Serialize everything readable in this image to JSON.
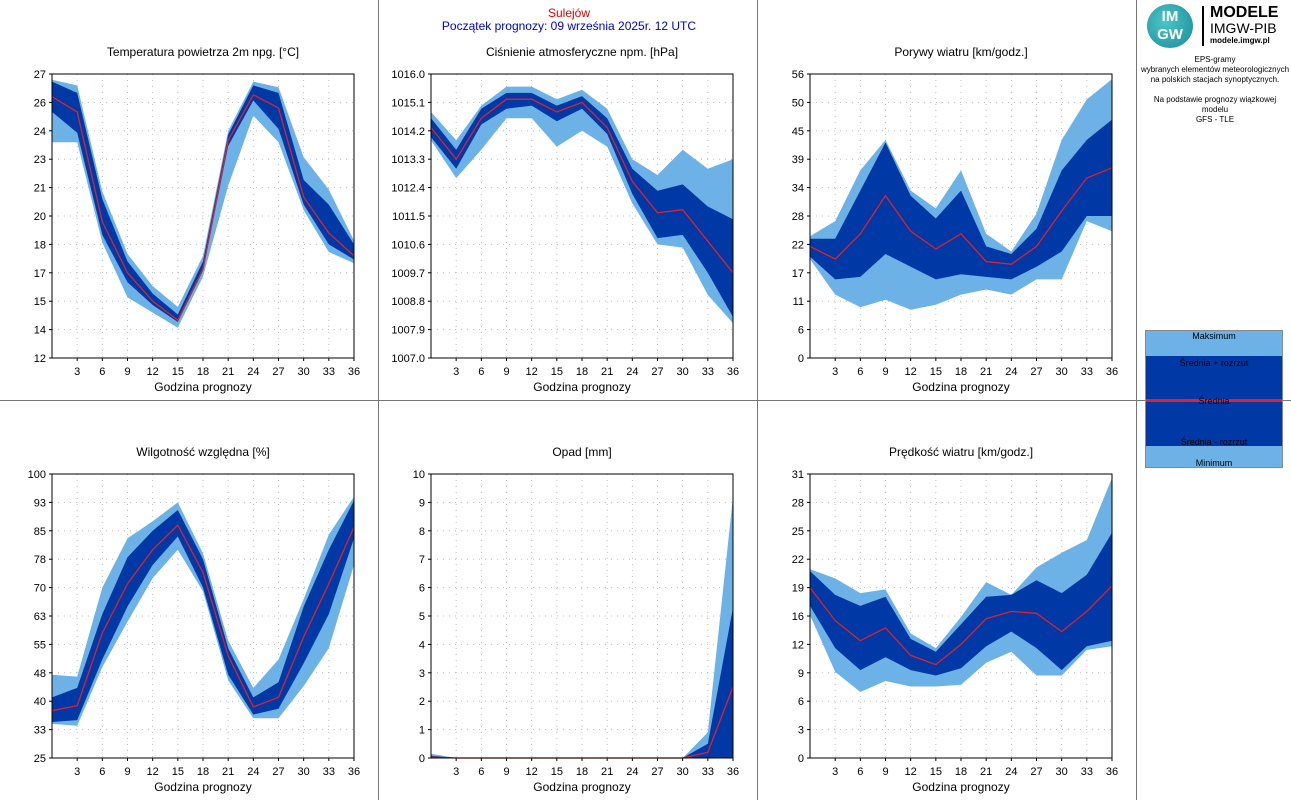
{
  "header": {
    "location": "Sulejów",
    "forecast_start": "Początek prognozy: 09 września 2025r. 12 UTC"
  },
  "logo": {
    "mark_line1": "IM",
    "mark_line2": "GW",
    "title": "MODELE",
    "org": "IMGW-PIB",
    "url": "modele.imgw.pl"
  },
  "description": {
    "lines": [
      "EPS-gramy",
      "wybranych elementów meteorologicznych",
      "na polskich stacjach  synoptycznych.",
      "",
      "Na podstawie prognozy wiązkowej modelu",
      "GFS - TLE"
    ]
  },
  "legend": {
    "max": "Maksimum",
    "plus": "Średnia + rozrzut",
    "mean": "Średnia",
    "minus": "Średnia - rozrzut",
    "min": "Minimum"
  },
  "colors": {
    "light": "#6cb2e6",
    "dark": "#0039a6",
    "mean": "#e0202a",
    "grid": "#b0b0b0"
  },
  "chart_data": [
    {
      "type": "area",
      "title": "Temperatura powietrza 2m npg. [°C]",
      "xlabel": "Godzina prognozy",
      "x": [
        0,
        3,
        6,
        9,
        12,
        15,
        18,
        21,
        24,
        27,
        30,
        33,
        36
      ],
      "xticks": [
        3,
        6,
        9,
        12,
        15,
        18,
        21,
        24,
        27,
        30,
        33,
        36
      ],
      "yticks": [
        "12",
        "14",
        "15",
        "17",
        "18",
        "20",
        "21",
        "23",
        "24",
        "26",
        "27"
      ],
      "ylim": [
        12,
        27
      ],
      "max": [
        26.7,
        26.4,
        20.8,
        17.5,
        15.8,
        14.7,
        17.4,
        24.0,
        26.6,
        26.3,
        22.6,
        20.9,
        18.2
      ],
      "plus": [
        26.6,
        26.0,
        20.4,
        17.1,
        15.4,
        14.3,
        17.1,
        23.8,
        26.4,
        26.0,
        21.4,
        20.1,
        18.0
      ],
      "mean": [
        25.8,
        25.0,
        19.2,
        16.5,
        15.0,
        14.0,
        16.7,
        23.5,
        25.9,
        25.2,
        20.5,
        18.6,
        17.4
      ],
      "minus": [
        25.0,
        23.9,
        18.5,
        16.0,
        14.8,
        13.9,
        16.6,
        23.2,
        25.6,
        24.1,
        20.1,
        18.0,
        17.2
      ],
      "min": [
        23.4,
        23.4,
        18.1,
        15.2,
        14.4,
        13.6,
        16.3,
        21.1,
        24.8,
        23.4,
        19.8,
        17.6,
        17.0
      ]
    },
    {
      "type": "area",
      "title": "Ciśnienie atmosferyczne npm. [hPa]",
      "xlabel": "Godzina prognozy",
      "x": [
        0,
        3,
        6,
        9,
        12,
        15,
        18,
        21,
        24,
        27,
        30,
        33,
        36
      ],
      "xticks": [
        3,
        6,
        9,
        12,
        15,
        18,
        21,
        24,
        27,
        30,
        33,
        36
      ],
      "yticks": [
        "1007.0",
        "1007.9",
        "1008.8",
        "1009.7",
        "1010.6",
        "1011.5",
        "1012.4",
        "1013.3",
        "1014.2",
        "1015.1",
        "1016.0"
      ],
      "ylim": [
        1007.0,
        1016.0
      ],
      "max": [
        1014.8,
        1013.9,
        1015.0,
        1015.6,
        1015.6,
        1015.2,
        1015.5,
        1014.9,
        1013.3,
        1012.8,
        1013.6,
        1013.0,
        1013.3
      ],
      "plus": [
        1014.6,
        1013.6,
        1014.9,
        1015.4,
        1015.4,
        1015.0,
        1015.3,
        1014.6,
        1013.0,
        1012.3,
        1012.5,
        1011.8,
        1011.4
      ],
      "mean": [
        1014.3,
        1013.3,
        1014.6,
        1015.2,
        1015.2,
        1014.8,
        1015.1,
        1014.3,
        1012.6,
        1011.6,
        1011.7,
        1010.7,
        1009.7
      ],
      "minus": [
        1014.0,
        1013.0,
        1014.4,
        1014.9,
        1015.0,
        1014.5,
        1014.9,
        1014.1,
        1012.2,
        1010.8,
        1010.9,
        1009.7,
        1008.3
      ],
      "min": [
        1013.9,
        1012.7,
        1013.6,
        1014.6,
        1014.6,
        1013.7,
        1014.2,
        1013.7,
        1011.9,
        1010.6,
        1010.5,
        1009.0,
        1008.1
      ]
    },
    {
      "type": "area",
      "title": "Porywy wiatru [km/godz.]",
      "xlabel": "Godzina prognozy",
      "x": [
        0,
        3,
        6,
        9,
        12,
        15,
        18,
        21,
        24,
        27,
        30,
        33,
        36
      ],
      "xticks": [
        3,
        6,
        9,
        12,
        15,
        18,
        21,
        24,
        27,
        30,
        33,
        36
      ],
      "yticks": [
        "0",
        "6",
        "11",
        "17",
        "22",
        "28",
        "34",
        "39",
        "45",
        "50",
        "56"
      ],
      "ylim": [
        0,
        56
      ],
      "max": [
        24.0,
        27.0,
        37.0,
        43.0,
        33.0,
        29.5,
        37.0,
        24.5,
        21.0,
        28.5,
        43.0,
        51.0,
        55.0
      ],
      "plus": [
        23.5,
        23.5,
        33.0,
        42.5,
        32.0,
        27.5,
        33.0,
        22.0,
        20.5,
        25.5,
        37.0,
        43.0,
        47.0
      ],
      "mean": [
        22.0,
        19.5,
        24.5,
        32.0,
        25.0,
        21.5,
        24.5,
        19.0,
        18.5,
        22.0,
        29.0,
        35.5,
        37.5
      ],
      "minus": [
        20.0,
        15.5,
        16.0,
        20.5,
        18.0,
        15.5,
        16.5,
        16.0,
        15.5,
        18.0,
        21.0,
        28.0,
        28.0
      ],
      "min": [
        19.5,
        12.5,
        10.0,
        11.5,
        9.5,
        10.5,
        12.5,
        13.5,
        12.5,
        15.5,
        15.5,
        27.0,
        25.0
      ]
    },
    {
      "type": "area",
      "title": "Wilgotność względna [%]",
      "xlabel": "Godzina prognozy",
      "x": [
        0,
        3,
        6,
        9,
        12,
        15,
        18,
        21,
        24,
        27,
        30,
        33,
        36
      ],
      "xticks": [
        3,
        6,
        9,
        12,
        15,
        18,
        21,
        24,
        27,
        30,
        33,
        36
      ],
      "yticks": [
        "25",
        "33",
        "40",
        "48",
        "55",
        "63",
        "70",
        "78",
        "85",
        "93",
        "100"
      ],
      "ylim": [
        25,
        100
      ],
      "max": [
        47.0,
        46.5,
        70.0,
        83.0,
        87.5,
        92.5,
        79.0,
        56.0,
        43.5,
        51.0,
        67.0,
        84.0,
        94.0
      ],
      "plus": [
        41.0,
        43.5,
        63.0,
        78.0,
        85.0,
        90.5,
        77.5,
        54.0,
        41.0,
        45.0,
        65.0,
        80.0,
        93.0
      ],
      "mean": [
        37.5,
        38.8,
        58.0,
        71.0,
        80.0,
        86.5,
        74.0,
        52.0,
        38.5,
        41.0,
        57.0,
        71.0,
        86.0
      ],
      "minus": [
        34.5,
        35.0,
        51.0,
        65.0,
        76.0,
        83.5,
        70.0,
        47.0,
        36.5,
        38.0,
        50.0,
        63.0,
        83.0
      ],
      "min": [
        34.0,
        33.5,
        49.0,
        61.0,
        72.5,
        80.0,
        69.0,
        45.5,
        35.5,
        35.5,
        44.0,
        54.0,
        76.0
      ]
    },
    {
      "type": "area",
      "title": "Opad [mm]",
      "xlabel": "Godzina prognozy",
      "x": [
        0,
        3,
        6,
        9,
        12,
        15,
        18,
        21,
        24,
        27,
        30,
        33,
        36
      ],
      "xticks": [
        3,
        6,
        9,
        12,
        15,
        18,
        21,
        24,
        27,
        30,
        33,
        36
      ],
      "yticks": [
        "0",
        "1",
        "2",
        "3",
        "4",
        "5",
        "6",
        "7",
        "8",
        "9",
        "10"
      ],
      "ylim": [
        0,
        10
      ],
      "max": [
        0.15,
        0,
        0,
        0,
        0,
        0,
        0,
        0,
        0,
        0,
        0,
        0.9,
        9.2
      ],
      "plus": [
        0.08,
        0,
        0,
        0,
        0,
        0,
        0,
        0,
        0,
        0,
        0,
        0.5,
        5.3
      ],
      "mean": [
        0.03,
        0,
        0,
        0,
        0,
        0,
        0,
        0,
        0,
        0,
        0,
        0.2,
        2.5
      ],
      "minus": [
        0,
        0,
        0,
        0,
        0,
        0,
        0,
        0,
        0,
        0,
        0,
        0,
        0
      ],
      "min": [
        0,
        0,
        0,
        0,
        0,
        0,
        0,
        0,
        0,
        0,
        0,
        0,
        0
      ]
    },
    {
      "type": "area",
      "title": "Prędkość wiatru [km/godz.]",
      "xlabel": "Godzina prognozy",
      "x": [
        0,
        3,
        6,
        9,
        12,
        15,
        18,
        21,
        24,
        27,
        30,
        33,
        36
      ],
      "xticks": [
        3,
        6,
        9,
        12,
        15,
        18,
        21,
        24,
        27,
        30,
        33,
        36
      ],
      "yticks": [
        "0",
        "3",
        "6",
        "9",
        "12",
        "16",
        "19",
        "22",
        "25",
        "28",
        "31"
      ],
      "ylim": [
        0,
        31
      ],
      "max": [
        20.6,
        19.6,
        18.0,
        18.4,
        13.6,
        12.0,
        15.4,
        19.2,
        17.8,
        20.8,
        22.4,
        23.8,
        30.6
      ],
      "plus": [
        20.4,
        17.8,
        16.6,
        17.6,
        13.0,
        11.6,
        14.6,
        17.6,
        17.8,
        19.4,
        18.0,
        20.0,
        24.6
      ],
      "mean": [
        18.6,
        15.0,
        12.8,
        14.2,
        11.2,
        10.2,
        12.4,
        15.2,
        16.0,
        15.8,
        13.8,
        16.0,
        18.8
      ],
      "minus": [
        16.6,
        12.0,
        9.6,
        11.0,
        9.6,
        9.0,
        9.8,
        12.2,
        13.8,
        12.0,
        9.6,
        12.2,
        12.8
      ],
      "min": [
        15.6,
        9.4,
        7.2,
        8.4,
        7.8,
        7.8,
        8.0,
        10.4,
        11.6,
        9.0,
        9.0,
        11.8,
        12.2
      ]
    }
  ]
}
